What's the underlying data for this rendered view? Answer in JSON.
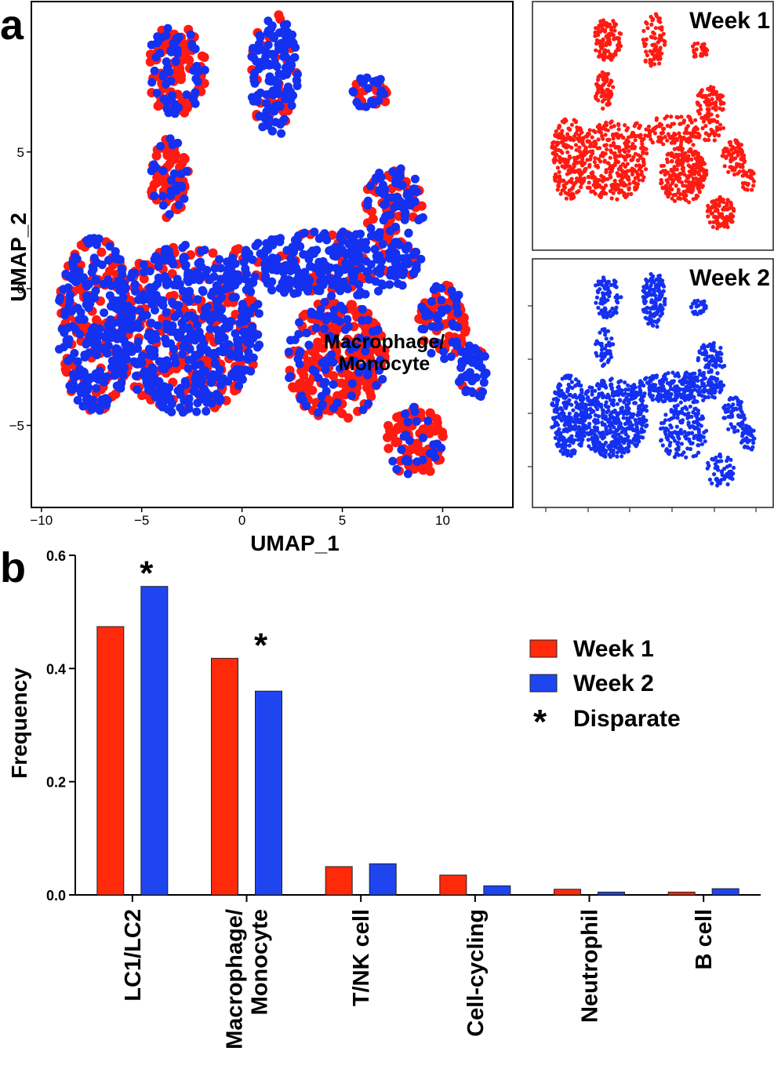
{
  "panel_a": {
    "letter": "a",
    "cluster_label_line1": "Macrophage/",
    "cluster_label_line2": "Monocyte",
    "small_panel_titles": [
      "Week 1",
      "Week 2"
    ],
    "colors": {
      "week1": "#ff1a12",
      "week2": "#1430f0"
    }
  },
  "panel_b": {
    "letter": "b",
    "legend_disparate": "Disparate",
    "star_symbol": "*"
  },
  "chart_data": [
    {
      "type": "scatter",
      "title": "",
      "xlabel": "UMAP_1",
      "ylabel": "UMAP_2",
      "xlim": [
        -10.5,
        13.5
      ],
      "ylim": [
        -8,
        10.5
      ],
      "xticks": [
        -10,
        -5,
        0,
        5,
        10
      ],
      "yticks": [
        -5,
        0,
        5
      ],
      "xtick_labels": [
        "−10",
        "−5",
        "0",
        "5",
        "10"
      ],
      "ytick_labels": [
        "−5",
        "0",
        "5"
      ],
      "series": [
        {
          "name": "Week 1",
          "color": "#ff1a12"
        },
        {
          "name": "Week 2",
          "color": "#1430f0"
        }
      ],
      "clusters": [
        {
          "name": "central",
          "cx": -2.8,
          "cy": -1.5,
          "rx": 3.8,
          "ry": 3.1,
          "w1": 0.45,
          "w2": 1
        },
        {
          "name": "left-lobe",
          "cx": -7.3,
          "cy": -1.3,
          "rx": 1.9,
          "ry": 3.2,
          "w1": 0.5,
          "w2": 0.8
        },
        {
          "name": "band",
          "cx": 4.2,
          "cy": 0.9,
          "rx": 5.0,
          "ry": 1.2,
          "w1": 0.2,
          "w2": 1
        },
        {
          "name": "upper-left-arm",
          "cx": -3.3,
          "cy": 8.0,
          "rx": 1.5,
          "ry": 1.7,
          "w1": 0.9,
          "w2": 0.65
        },
        {
          "name": "mid-left-arm",
          "cx": -3.6,
          "cy": 4.0,
          "rx": 1.0,
          "ry": 1.5,
          "w1": 1,
          "w2": 0.5
        },
        {
          "name": "top-spike",
          "cx": 1.6,
          "cy": 7.8,
          "rx": 1.2,
          "ry": 2.3,
          "w1": 0.3,
          "w2": 1
        },
        {
          "name": "island-right",
          "cx": 6.3,
          "cy": 7.2,
          "rx": 1.1,
          "ry": 0.6,
          "w1": 0.7,
          "w2": 0.9
        },
        {
          "name": "macrophage",
          "cx": 4.7,
          "cy": -2.6,
          "rx": 2.5,
          "ry": 2.2,
          "w1": 1,
          "w2": 0.35
        },
        {
          "name": "lower-right",
          "cx": 8.6,
          "cy": -5.6,
          "rx": 1.5,
          "ry": 1.3,
          "w1": 1,
          "w2": 0.3
        },
        {
          "name": "far-right-blob",
          "cx": 11.5,
          "cy": -3.0,
          "rx": 0.8,
          "ry": 1.1,
          "w1": 0.1,
          "w2": 1
        },
        {
          "name": "right-upper",
          "cx": 7.6,
          "cy": 3.0,
          "rx": 1.5,
          "ry": 1.5,
          "w1": 0.5,
          "w2": 0.8
        },
        {
          "name": "right-dangle",
          "cx": 10.0,
          "cy": -1.2,
          "rx": 1.2,
          "ry": 1.4,
          "w1": 0.8,
          "w2": 0.6
        }
      ]
    },
    {
      "type": "bar",
      "title": "",
      "xlabel": "",
      "ylabel": "Frequency",
      "ylim": [
        0,
        0.6
      ],
      "yticks": [
        0,
        0.2,
        0.4,
        0.6
      ],
      "ytick_labels": [
        "0.0",
        "0.2",
        "0.4",
        "0.6"
      ],
      "categories": [
        "LC1/LC2",
        "Macrophage/\nMonocyte",
        "T/NK cell",
        "Cell-cycling",
        "Neutrophil",
        "B cell"
      ],
      "series": [
        {
          "name": "Week 1",
          "color": "#ff2a0a",
          "values": [
            0.474,
            0.418,
            0.05,
            0.035,
            0.01,
            0.005
          ]
        },
        {
          "name": "Week 2",
          "color": "#1f45f0",
          "values": [
            0.545,
            0.36,
            0.055,
            0.016,
            0.005,
            0.011
          ]
        }
      ],
      "disparate": [
        true,
        true,
        false,
        false,
        false,
        false
      ],
      "legend": [
        "Week 1",
        "Week 2",
        "Disparate"
      ],
      "legend_position": "top-right"
    }
  ]
}
